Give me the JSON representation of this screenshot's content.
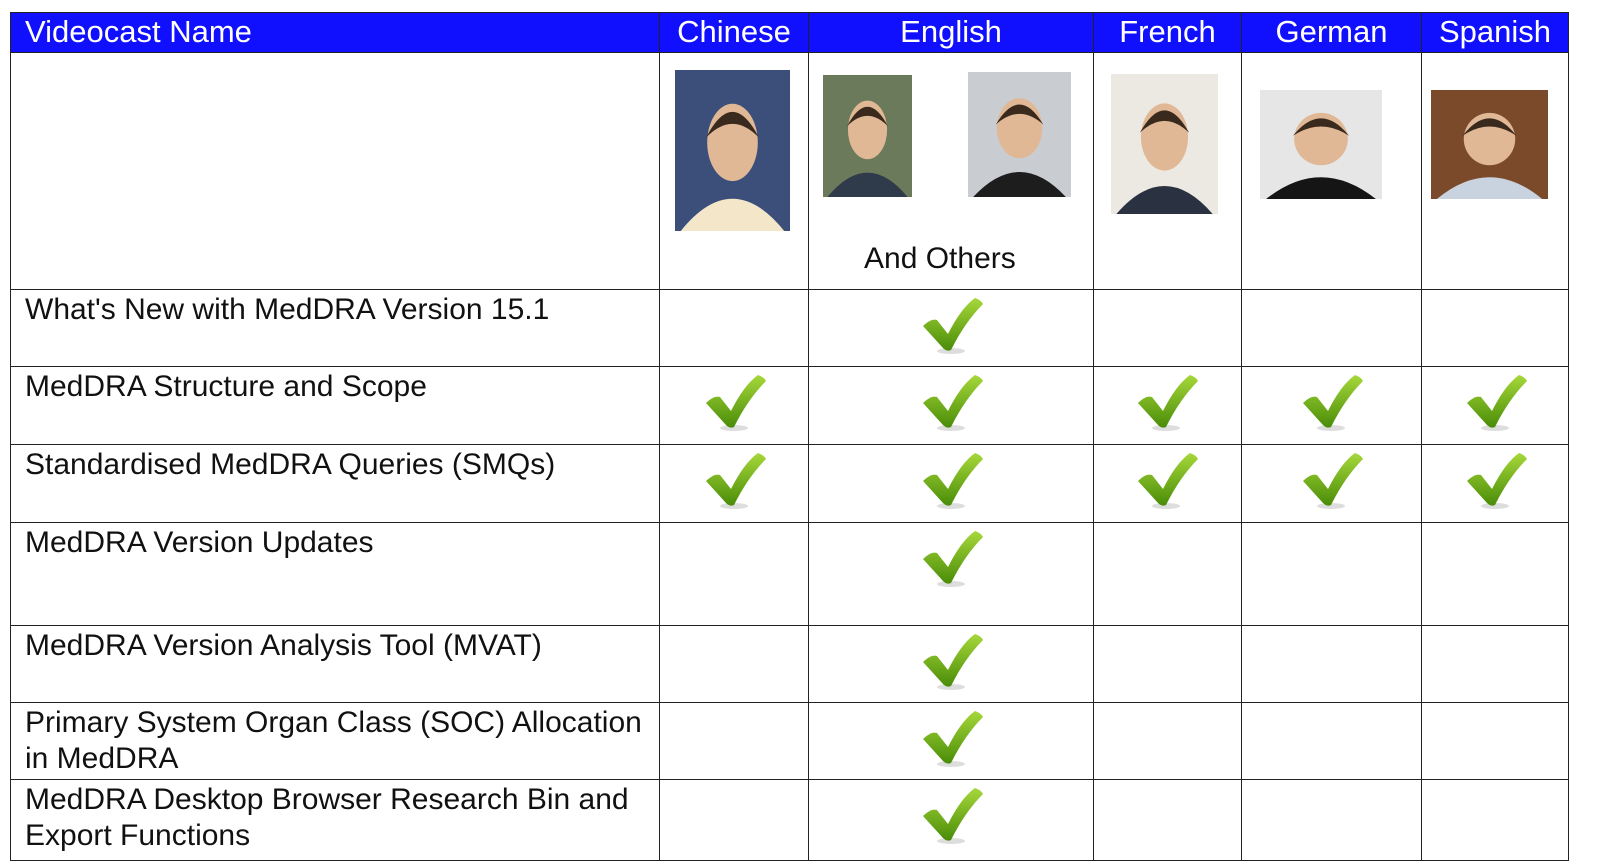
{
  "header": {
    "name_column": "Videocast Name",
    "languages": [
      "Chinese",
      "English",
      "French",
      "German",
      "Spanish"
    ]
  },
  "photo_row": {
    "english_caption": "And Others"
  },
  "rows": [
    {
      "name": "What's New with MedDRA Version 15.1",
      "available": [
        false,
        true,
        false,
        false,
        false
      ]
    },
    {
      "name": "MedDRA Structure and Scope",
      "available": [
        true,
        true,
        true,
        true,
        true
      ]
    },
    {
      "name": "Standardised MedDRA Queries (SMQs)",
      "available": [
        true,
        true,
        true,
        true,
        true
      ]
    },
    {
      "name": "MedDRA Version Updates",
      "available": [
        false,
        true,
        false,
        false,
        false
      ]
    },
    {
      "name": "MedDRA Version Analysis Tool (MVAT)",
      "available": [
        false,
        true,
        false,
        false,
        false
      ]
    },
    {
      "name": "Primary System Organ Class (SOC) Allocation in MedDRA",
      "available": [
        false,
        true,
        false,
        false,
        false
      ]
    },
    {
      "name": "MedDRA Desktop Browser Research Bin and Export Functions",
      "available": [
        false,
        true,
        false,
        false,
        false
      ]
    }
  ]
}
